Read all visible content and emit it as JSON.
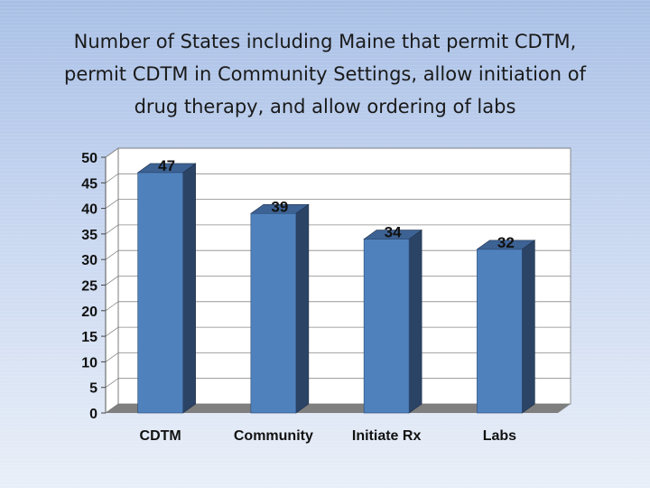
{
  "slide": {
    "title_lines": [
      "Number of States including Maine that permit CDTM,",
      "permit CDTM in Community Settings, allow initiation of",
      "drug therapy, and allow ordering of labs"
    ]
  },
  "chart_data": {
    "type": "bar",
    "title": "Number of States including Maine that permit CDTM, permit CDTM in Community Settings, allow initiation of drug therapy, and allow ordering of labs",
    "categories": [
      "CDTM",
      "Community",
      "Initiate Rx",
      "Labs"
    ],
    "values": [
      47,
      39,
      34,
      32
    ],
    "data_labels": [
      "47",
      "39",
      "34",
      "32"
    ],
    "ylim": [
      0,
      50
    ],
    "yticks": [
      0,
      5,
      10,
      15,
      20,
      25,
      30,
      35,
      40,
      45,
      50
    ],
    "grid": true,
    "legend": "none",
    "style": "3d",
    "colors": {
      "front": "#4f81bd",
      "side": "#2b4466",
      "top": "#3d6294",
      "floor": "#7f7f7f"
    }
  }
}
